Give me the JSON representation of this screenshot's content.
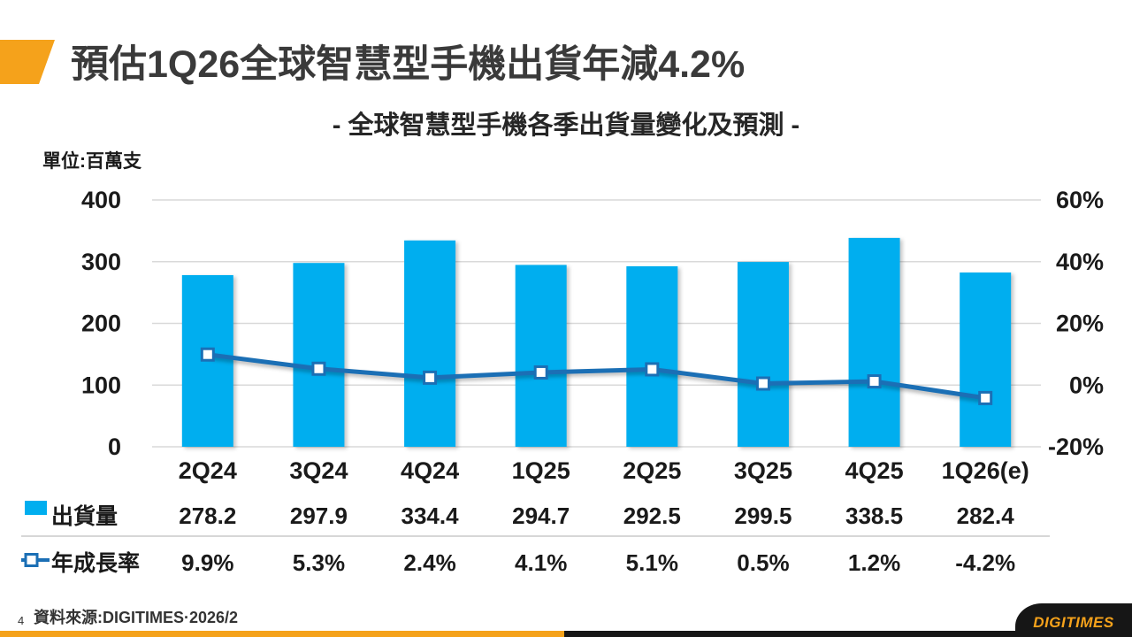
{
  "slide": {
    "title": "預估1Q26全球智慧型手機出貨年減4.2%",
    "subtitle": "- 全球智慧型手機各季出貨量變化及預測 -",
    "unit_label": "單位:百萬支",
    "page_number": "4",
    "source_text": "資料來源:DIGITIMES·2026/2",
    "logo_text": "DIGITIMES"
  },
  "colors": {
    "accent_orange": "#F5A21B",
    "bar_fill": "#00AEEF",
    "line_stroke": "#1B6FB5",
    "gridline": "#D9D9D9",
    "separator": "#BFBFBF",
    "text": "#1A1A1A"
  },
  "chart_data": {
    "type": "combo-bar-line",
    "title": "全球智慧型手機各季出貨量變化及預測",
    "unit": "百萬支",
    "categories": [
      "2Q24",
      "3Q24",
      "4Q24",
      "1Q25",
      "2Q25",
      "3Q25",
      "4Q25",
      "1Q26(e)"
    ],
    "series": [
      {
        "name": "出貨量",
        "type": "bar",
        "axis": "left",
        "values": [
          278.2,
          297.9,
          334.4,
          294.7,
          292.5,
          299.5,
          338.5,
          282.4
        ],
        "labels": [
          "278.2",
          "297.9",
          "334.4",
          "294.7",
          "292.5",
          "299.5",
          "338.5",
          "282.4"
        ]
      },
      {
        "name": "年成長率",
        "type": "line",
        "axis": "right",
        "values": [
          9.9,
          5.3,
          2.4,
          4.1,
          5.1,
          0.5,
          1.2,
          -4.2
        ],
        "labels": [
          "9.9%",
          "5.3%",
          "2.4%",
          "4.1%",
          "5.1%",
          "0.5%",
          "1.2%",
          "-4.2%"
        ]
      }
    ],
    "left_axis": {
      "min": 0,
      "max": 400,
      "tick_values": [
        0,
        100,
        200,
        300,
        400
      ],
      "ticks": [
        "0",
        "100",
        "200",
        "300",
        "400"
      ]
    },
    "right_axis": {
      "min": -20,
      "max": 60,
      "tick_values": [
        -20,
        0,
        20,
        40,
        60
      ],
      "ticks": [
        "-20%",
        "0%",
        "20%",
        "40%",
        "60%"
      ]
    },
    "grid": true,
    "legend_position": "data-table-left"
  }
}
